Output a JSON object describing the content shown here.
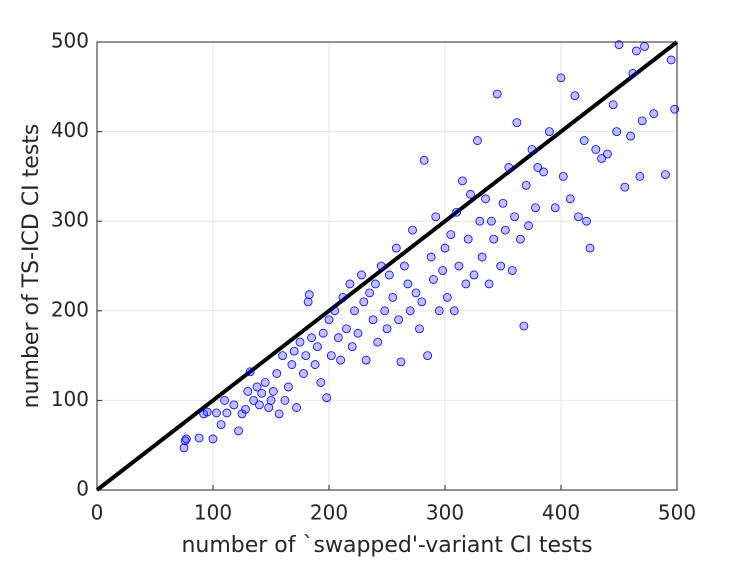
{
  "chart_data": {
    "type": "scatter",
    "x_label": "number of `swapped'-variant CI tests",
    "y_label": "number of TS-ICD CI tests",
    "xlim": [
      0,
      500
    ],
    "ylim": [
      0,
      500
    ],
    "xticks": [
      0,
      100,
      200,
      300,
      400,
      500
    ],
    "yticks": [
      0,
      100,
      200,
      300,
      400,
      500
    ],
    "grid": true,
    "reference_line": {
      "x": [
        0,
        500
      ],
      "y": [
        0,
        500
      ],
      "color": "#000000"
    },
    "series": [
      {
        "color": "#0000ff",
        "x": [
          75,
          76,
          77,
          88,
          92,
          95,
          100,
          103,
          107,
          110,
          112,
          118,
          122,
          125,
          128,
          130,
          132,
          135,
          138,
          140,
          142,
          145,
          148,
          150,
          152,
          155,
          157,
          160,
          162,
          165,
          168,
          170,
          172,
          175,
          178,
          180,
          182,
          183,
          185,
          188,
          190,
          193,
          195,
          198,
          200,
          202,
          205,
          208,
          210,
          212,
          215,
          218,
          220,
          222,
          225,
          228,
          230,
          232,
          235,
          238,
          240,
          242,
          245,
          248,
          250,
          252,
          255,
          258,
          260,
          262,
          265,
          268,
          270,
          272,
          275,
          278,
          280,
          282,
          285,
          288,
          290,
          292,
          295,
          298,
          300,
          302,
          305,
          308,
          310,
          312,
          315,
          318,
          320,
          322,
          325,
          328,
          330,
          332,
          335,
          338,
          340,
          342,
          345,
          348,
          350,
          352,
          355,
          358,
          360,
          362,
          365,
          368,
          370,
          372,
          375,
          378,
          380,
          385,
          390,
          395,
          400,
          402,
          408,
          412,
          415,
          420,
          422,
          425,
          430,
          435,
          440,
          445,
          448,
          450,
          455,
          460,
          462,
          465,
          468,
          470,
          472,
          480,
          490,
          495,
          498
        ],
        "values": [
          47,
          55,
          57,
          58,
          85,
          87,
          57,
          86,
          73,
          100,
          86,
          95,
          66,
          85,
          90,
          110,
          132,
          100,
          115,
          95,
          108,
          120,
          92,
          100,
          110,
          130,
          85,
          150,
          100,
          115,
          140,
          155,
          92,
          165,
          130,
          150,
          210,
          218,
          170,
          140,
          160,
          120,
          175,
          103,
          190,
          150,
          200,
          170,
          145,
          215,
          180,
          230,
          160,
          200,
          175,
          240,
          210,
          145,
          220,
          190,
          230,
          165,
          250,
          200,
          180,
          240,
          215,
          270,
          190,
          143,
          250,
          230,
          200,
          290,
          220,
          180,
          210,
          368,
          150,
          260,
          235,
          305,
          200,
          245,
          270,
          215,
          285,
          200,
          310,
          250,
          345,
          230,
          280,
          330,
          240,
          390,
          300,
          260,
          325,
          230,
          300,
          280,
          442,
          250,
          320,
          290,
          360,
          245,
          305,
          410,
          280,
          183,
          340,
          295,
          380,
          315,
          360,
          355,
          400,
          315,
          460,
          350,
          325,
          440,
          305,
          390,
          300,
          270,
          380,
          370,
          375,
          430,
          400,
          497,
          338,
          395,
          465,
          490,
          350,
          412,
          495,
          420,
          352,
          480,
          425
        ]
      }
    ]
  }
}
